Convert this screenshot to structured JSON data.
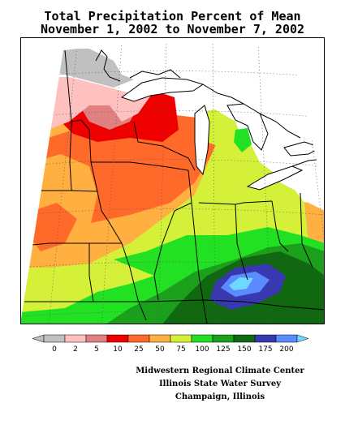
{
  "title": {
    "line1": "Total Precipitation Percent of Mean",
    "line2": "November 1, 2002 to November 7, 2002"
  },
  "legend": {
    "items": [
      {
        "label": "0",
        "color": "#c0c0c0"
      },
      {
        "label": "2",
        "color": "#ffc0c0"
      },
      {
        "label": "5",
        "color": "#e08080"
      },
      {
        "label": "10",
        "color": "#ee0000"
      },
      {
        "label": "25",
        "color": "#ff6a2a"
      },
      {
        "label": "50",
        "color": "#ffb040"
      },
      {
        "label": "75",
        "color": "#d4f038"
      },
      {
        "label": "100",
        "color": "#22e022"
      },
      {
        "label": "125",
        "color": "#1aa01a"
      },
      {
        "label": "150",
        "color": "#106810"
      },
      {
        "label": "175",
        "color": "#3838b0"
      },
      {
        "label": "200",
        "color": "#5a8cff"
      }
    ],
    "overflow_color": "#70d8ff"
  },
  "credits": {
    "line1": "Midwestern Regional Climate Center",
    "line2": "Illinois State Water Survey",
    "line3": "Champaign, Illinois"
  }
}
